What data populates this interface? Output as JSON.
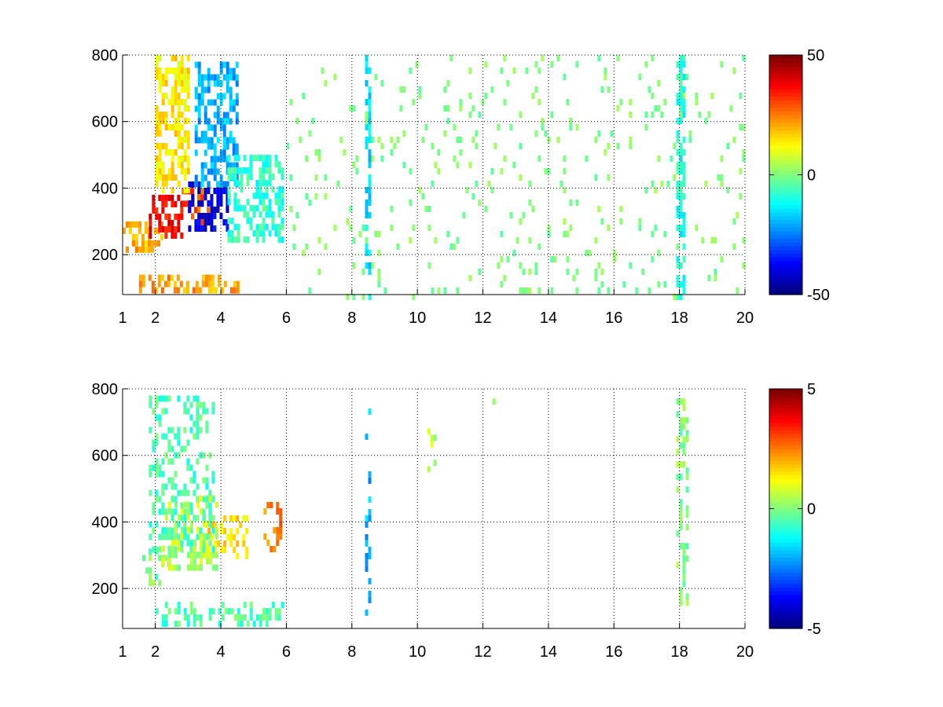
{
  "chart_data": [
    {
      "type": "heatmap",
      "xlabel": "",
      "ylabel": "",
      "title": "",
      "xlim": [
        1,
        20
      ],
      "ylim": [
        80,
        800
      ],
      "x_ticks": [
        1,
        2,
        4,
        6,
        8,
        10,
        12,
        14,
        16,
        18,
        20
      ],
      "x_tick_labels": [
        "1",
        "2",
        "4",
        "6",
        "8",
        "10",
        "12",
        "14",
        "16",
        "18",
        "20"
      ],
      "y_ticks": [
        200,
        400,
        600,
        800
      ],
      "y_tick_labels": [
        "200",
        "400",
        "600",
        "800"
      ],
      "grid": true,
      "colormap": "jet",
      "clim": [
        -50,
        50
      ],
      "colorbar_ticks": [
        -50,
        0,
        50
      ],
      "colorbar_tick_labels": [
        "-50",
        "0",
        "50"
      ],
      "regions": [
        {
          "x": [
            1.0,
            2.2
          ],
          "y": [
            220,
            300
          ],
          "value": 20
        },
        {
          "x": [
            1.8,
            2.8
          ],
          "y": [
            250,
            380
          ],
          "value": 38
        },
        {
          "x": [
            2.8,
            3.6
          ],
          "y": [
            300,
            400
          ],
          "value": 30
        },
        {
          "x": [
            3.0,
            4.2
          ],
          "y": [
            280,
            420
          ],
          "value": -40
        },
        {
          "x": [
            2.0,
            3.0
          ],
          "y": [
            400,
            800
          ],
          "value": 14
        },
        {
          "x": [
            3.2,
            4.5
          ],
          "y": [
            420,
            780
          ],
          "value": -20
        },
        {
          "x": [
            4.2,
            5.9
          ],
          "y": [
            250,
            500
          ],
          "value": -8
        },
        {
          "x": [
            1.5,
            4.5
          ],
          "y": [
            100,
            140
          ],
          "value": 22
        },
        {
          "x": [
            6.0,
            20.0
          ],
          "y": [
            80,
            800
          ],
          "value": 0,
          "note": "sparse scattered cells"
        },
        {
          "x": [
            8.4,
            8.5
          ],
          "y": [
            80,
            800
          ],
          "value": -15
        },
        {
          "x": [
            17.9,
            18.1
          ],
          "y": [
            80,
            800
          ],
          "value": -10
        }
      ]
    },
    {
      "type": "heatmap",
      "xlabel": "",
      "ylabel": "",
      "title": "",
      "xlim": [
        1,
        20
      ],
      "ylim": [
        80,
        800
      ],
      "x_ticks": [
        1,
        2,
        4,
        6,
        8,
        10,
        12,
        14,
        16,
        18,
        20
      ],
      "x_tick_labels": [
        "1",
        "2",
        "4",
        "6",
        "8",
        "10",
        "12",
        "14",
        "16",
        "18",
        "20"
      ],
      "y_ticks": [
        200,
        400,
        600,
        800
      ],
      "y_tick_labels": [
        "200",
        "400",
        "600",
        "800"
      ],
      "grid": true,
      "colormap": "jet",
      "clim": [
        -5,
        5
      ],
      "colorbar_ticks": [
        -5,
        0,
        5
      ],
      "colorbar_tick_labels": [
        "-5",
        "0",
        "5"
      ],
      "regions": [
        {
          "x": [
            1.6,
            2.4
          ],
          "y": [
            220,
            320
          ],
          "value": 0
        },
        {
          "x": [
            2.2,
            4.0
          ],
          "y": [
            260,
            480
          ],
          "value": 0.5
        },
        {
          "x": [
            3.5,
            4.8
          ],
          "y": [
            300,
            420
          ],
          "value": 1.5
        },
        {
          "x": [
            1.8,
            3.8
          ],
          "y": [
            320,
            780
          ],
          "value": -0.5
        },
        {
          "x": [
            2.0,
            5.9
          ],
          "y": [
            100,
            160
          ],
          "value": -0.5
        },
        {
          "x": [
            5.3,
            5.8
          ],
          "y": [
            320,
            460
          ],
          "value": 2.5
        },
        {
          "x": [
            8.4,
            8.5
          ],
          "y": [
            90,
            760
          ],
          "value": -2
        },
        {
          "x": [
            10.3,
            10.5
          ],
          "y": [
            550,
            700
          ],
          "value": 0.5
        },
        {
          "x": [
            12.1,
            12.3
          ],
          "y": [
            760,
            790
          ],
          "value": 0
        },
        {
          "x": [
            17.9,
            18.2
          ],
          "y": [
            150,
            790
          ],
          "value": 0
        }
      ]
    }
  ]
}
